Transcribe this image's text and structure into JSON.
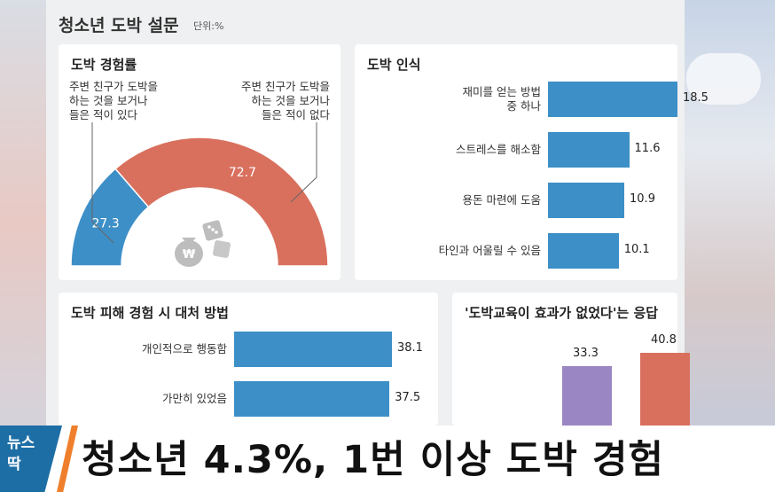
{
  "infographic": {
    "title": "청소년 도박 설문",
    "unit": "단위:%"
  },
  "chart_data": [
    {
      "type": "pie",
      "title": "도박 경험률",
      "categories": [
        "주변 친구가 도박을 하는 것을 보거나 들은 적이 있다",
        "주변 친구가 도박을 하는 것을 보거나 들은 적이 없다"
      ],
      "values": [
        27.3,
        72.7
      ],
      "colors": [
        "#3d8fc7",
        "#d9705e"
      ],
      "annotation_left": [
        "주변 친구가 도박을",
        "하는 것을 보거나",
        "들은 적이 있다"
      ],
      "annotation_right": [
        "주변 친구가 도박을",
        "하는 것을 보거나",
        "들은 적이 없다"
      ]
    },
    {
      "type": "bar",
      "title": "도박 인식",
      "categories": [
        "재미를 얻는 방법 중 하나",
        "스트레스를 해소함",
        "용돈 마련에 도움",
        "타인과 어울릴 수 있음"
      ],
      "category_lines": [
        [
          "재미를 얻는 방법",
          "중 하나"
        ],
        [
          "스트레스를 해소함"
        ],
        [
          "용돈 마련에 도움"
        ],
        [
          "타인과 어울릴 수 있음"
        ]
      ],
      "values": [
        18.5,
        11.6,
        10.9,
        10.1
      ],
      "value_labels": [
        "18.5",
        "11.6",
        "10.9",
        "10.1"
      ],
      "color": "#3d8fc7"
    },
    {
      "type": "bar",
      "title": "도박 피해 경험 시 대처 방법",
      "categories": [
        "개인적으로 행동함",
        "가만히 있었음"
      ],
      "values": [
        38.1,
        37.5
      ],
      "value_labels": [
        "38.1",
        "37.5"
      ],
      "color": "#3d8fc7"
    },
    {
      "type": "bar",
      "title": "'도박교육이 효과가 없었다'는 응답",
      "categories": [
        "",
        ""
      ],
      "values": [
        33.3,
        40.8
      ],
      "value_labels": [
        "33.3",
        "40.8"
      ],
      "colors": [
        "#9b86c4",
        "#d9705e"
      ]
    }
  ],
  "caption": {
    "logo_line1": "뉴스",
    "logo_line2": "딱",
    "headline": "청소년 4.3%, 1번 이상 도박 경험"
  }
}
